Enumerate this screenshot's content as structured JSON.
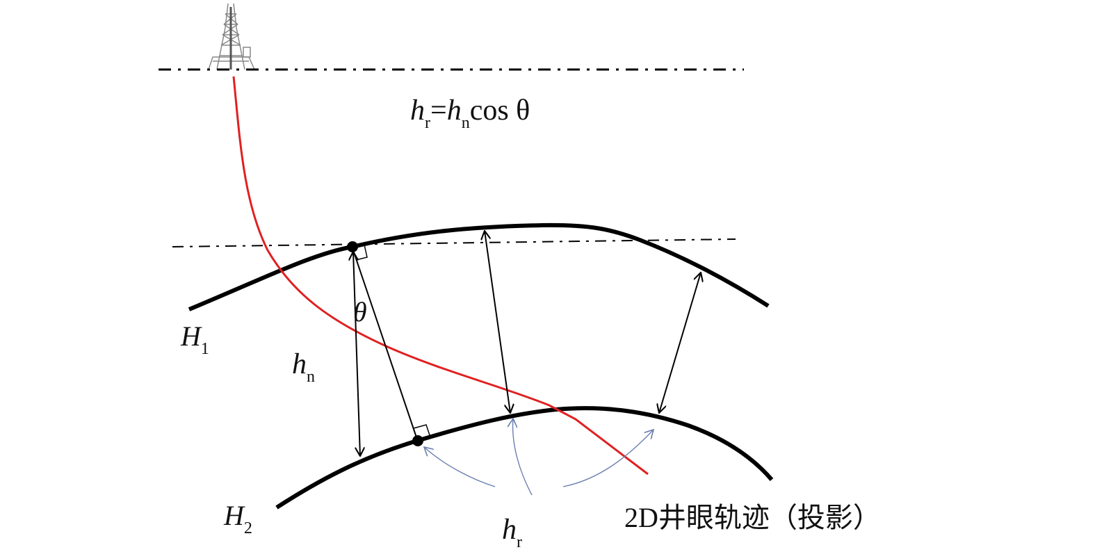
{
  "formula": {
    "lhs": "h",
    "lhs_sub": "r",
    "eq": "=",
    "rhs": "h",
    "rhs_sub": "n",
    "tail": "cos θ"
  },
  "labels": {
    "theta": "θ",
    "H1": "H",
    "H1_sub": "1",
    "H2": "H",
    "H2_sub": "2",
    "hn": "h",
    "hn_sub": "n",
    "hr": "h",
    "hr_sub": "r",
    "trajectory": "2D井眼轨迹（投影）"
  },
  "colors": {
    "trajectory": "#e02020",
    "horizon": "#000000",
    "annotation_arrow": "#6a7fb0"
  },
  "icons": {
    "rig": "drilling-rig-icon"
  }
}
